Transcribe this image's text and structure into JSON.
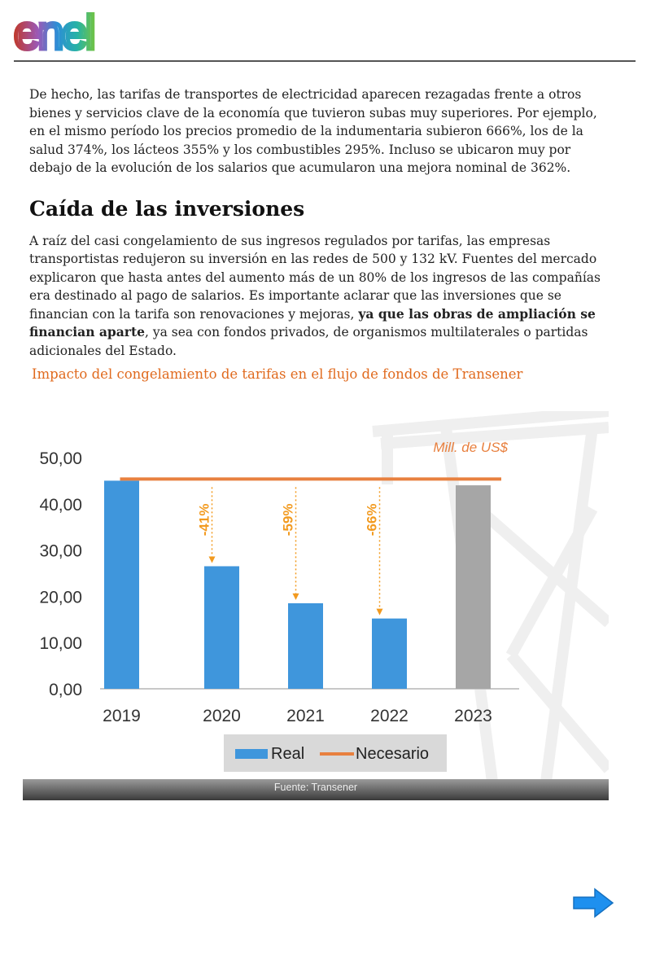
{
  "brand": {
    "logo_text": "enel"
  },
  "article": {
    "paragraph1": "De hecho, las tarifas de transportes de electricidad aparecen rezagadas frente a otros bienes y servicios clave de la economía que tuvieron subas muy superiores. Por ejemplo, en el mismo período los precios promedio de la indumentaria subieron 666%, los de la salud 374%, los lácteos 355% y los combustibles 295%. Incluso se ubicaron muy por debajo de la evolución de los salarios que acumularon una mejora nominal de 362%.",
    "section_title": "Caída de las inversiones",
    "paragraph2_before": "A raíz del casi congelamiento de sus ingresos regulados por tarifas, las empresas transportistas redujeron su inversión en las redes de 500 y 132 kV. Fuentes del mercado explicaron que hasta antes del aumento más de un 80% de los ingresos de las compañías era destinado al pago de salarios. Es importante aclarar que las inversiones que se financian con la tarifa son renovaciones y mejoras, ",
    "paragraph2_bold": "ya que las obras de ampliación se financian aparte",
    "paragraph2_after": ", ya sea con fondos privados, de organismos multilaterales o partidas adicionales del Estado.",
    "chart_caption": "Impacto del congelamiento de tarifas en el flujo de fondos de Transener"
  },
  "chart_data": {
    "type": "bar",
    "title": "Impacto del congelamiento de tarifas en el flujo de fondos de Transener",
    "unit_label": "Mill. de US$",
    "categories": [
      "2019",
      "2020",
      "2021",
      "2022",
      "2023"
    ],
    "series": [
      {
        "name": "Real",
        "values": [
          45.0,
          26.5,
          18.5,
          15.2,
          44.0
        ],
        "color": "#3f96dc"
      },
      {
        "name": "Necesario",
        "values": [
          45.0,
          45.0,
          45.0,
          45.0,
          45.0
        ],
        "color": "#e8803f"
      }
    ],
    "bar_colors": [
      "#3f96dc",
      "#3f96dc",
      "#3f96dc",
      "#3f96dc",
      "#a6a6a6"
    ],
    "y_ticks": [
      "0,00",
      "10,00",
      "20,00",
      "30,00",
      "40,00",
      "50,00"
    ],
    "ylim": [
      0,
      50
    ],
    "annotations": [
      {
        "category": "2020",
        "text": "-41%"
      },
      {
        "category": "2021",
        "text": "-59%"
      },
      {
        "category": "2022",
        "text": "-66%"
      }
    ],
    "legend": [
      "Real",
      "Necesario"
    ],
    "legend_position": "bottom",
    "annotation_color": "#f29a1f",
    "source": "Fuente: Transener"
  }
}
